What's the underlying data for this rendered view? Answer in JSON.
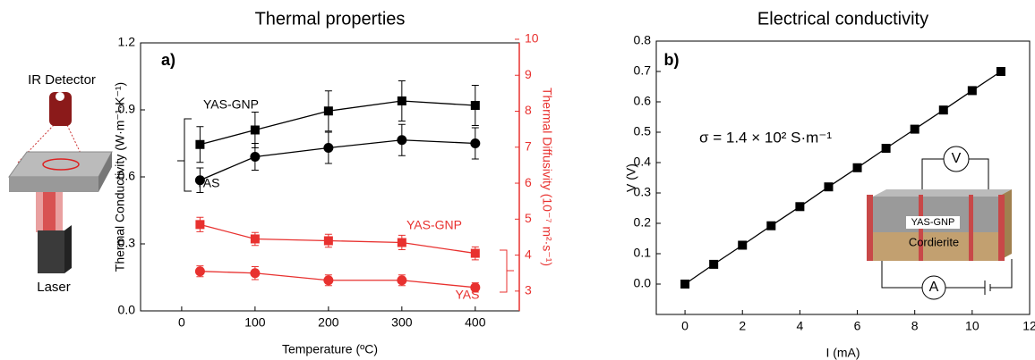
{
  "chart_data": [
    {
      "type": "line",
      "title": "Thermal properties",
      "xlabel": "Temperature (ºC)",
      "ylabel": "Thermal Conductivity (W·m⁻¹·K⁻¹)",
      "y2label": "Thermal Diffusivity (10⁻⁷ m²·s⁻¹)",
      "x": [
        25,
        100,
        200,
        300,
        400
      ],
      "xlim": [
        -56,
        460
      ],
      "xticks": [
        0,
        100,
        200,
        300,
        400
      ],
      "ylim": [
        0,
        1.2
      ],
      "yticks": [
        {
          "value": 0,
          "label": "0.0"
        },
        0.3,
        0.6,
        0.9,
        1.2
      ],
      "y2lim": [
        2.45,
        9.9
      ],
      "y2ticks": [
        3,
        4,
        5,
        6,
        7,
        8,
        9,
        10
      ],
      "y2color": "#e8312f",
      "series": [
        {
          "name": "YAS-GNP",
          "color": "#000000",
          "marker": "square",
          "values": [
            0.745,
            0.81,
            0.895,
            0.94,
            0.92
          ],
          "errors": [
            0.08,
            0.08,
            0.09,
            0.09,
            0.09
          ]
        },
        {
          "name": "YAS",
          "color": "#000000",
          "marker": "circle",
          "values": [
            0.585,
            0.69,
            0.73,
            0.765,
            0.75
          ],
          "errors": [
            0.055,
            0.06,
            0.07,
            0.07,
            0.07
          ]
        },
        {
          "name": "YAS-GNP",
          "color": "#e8312f",
          "marker": "square",
          "axis": "y2",
          "values": [
            4.85,
            4.45,
            4.4,
            4.35,
            4.05
          ],
          "errors": [
            0.2,
            0.18,
            0.18,
            0.2,
            0.18
          ]
        },
        {
          "name": "YAS",
          "color": "#e8312f",
          "marker": "circle",
          "axis": "y2",
          "values": [
            3.55,
            3.5,
            3.3,
            3.3,
            3.1
          ],
          "errors": [
            0.15,
            0.18,
            0.15,
            0.15,
            0.13
          ]
        }
      ],
      "annotations": [
        {
          "text": "a)",
          "color": "#000000"
        },
        {
          "text": "YAS-GNP",
          "color": "#000000"
        },
        {
          "text": "YAS",
          "color": "#000000"
        },
        {
          "text": "YAS-GNP",
          "color": "#e8312f"
        },
        {
          "text": "YAS",
          "color": "#e8312f"
        },
        {
          "text": "IR Detector",
          "color": "#000000"
        },
        {
          "text": "Laser",
          "color": "#000000"
        }
      ]
    },
    {
      "type": "line",
      "title": "Electrical conductivity",
      "xlabel": "I (mA)",
      "ylabel": "V (V)",
      "x": [
        0,
        1,
        2,
        3,
        4,
        5,
        6,
        7,
        8,
        9,
        10,
        11
      ],
      "xlim": [
        -1,
        12
      ],
      "xticks": [
        0,
        2,
        4,
        6,
        8,
        10,
        12
      ],
      "ylim": [
        -0.1,
        0.8
      ],
      "yticks": [
        {
          "value": 0,
          "label": "0.0"
        },
        0.1,
        0.2,
        0.3,
        0.4,
        0.5,
        0.6,
        0.7,
        0.8
      ],
      "series": [
        {
          "name": "V",
          "color": "#000000",
          "marker": "square",
          "values": [
            0,
            0.065,
            0.128,
            0.192,
            0.255,
            0.32,
            0.383,
            0.447,
            0.51,
            0.573,
            0.637,
            0.7
          ]
        }
      ],
      "annotations": [
        {
          "text": "b)",
          "color": "#000000"
        },
        {
          "text": "σ = 1.4 × 10² S·m⁻¹",
          "color": "#000000"
        },
        {
          "text": "V",
          "color": "#000000"
        },
        {
          "text": "YAS-GNP",
          "color": "#000000"
        },
        {
          "text": "Cordierite",
          "color": "#000000"
        },
        {
          "text": "A",
          "color": "#000000"
        }
      ]
    }
  ]
}
